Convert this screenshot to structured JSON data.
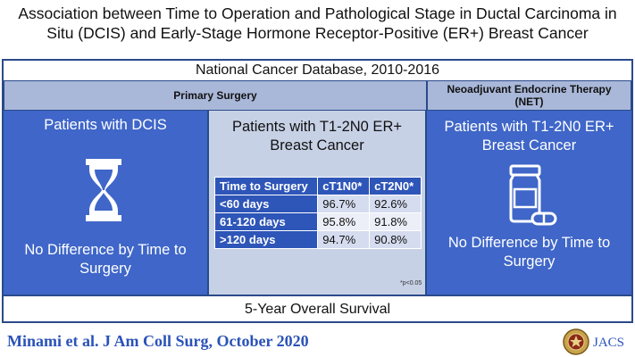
{
  "title": {
    "line1": "Association between Time to Operation and Pathological Stage in Ductal Carcinoma in",
    "line2": "Situ (DCIS) and Early-Stage Hormone Receptor-Positive (ER+) Breast Cancer"
  },
  "database": "National Cancer Database, 2010-2016",
  "headers": {
    "primary": "Primary Surgery",
    "net": "Neoadjuvant Endocrine Therapy (NET)"
  },
  "dcis_panel": {
    "title": "Patients with DCIS",
    "icon": "hourglass-icon",
    "result": "No Difference by Time to Surgery"
  },
  "middle_panel": {
    "title": "Patients with T1-2N0 ER+ Breast Cancer",
    "table": {
      "headers": [
        "Time to Surgery",
        "cT1N0*",
        "cT2N0*"
      ],
      "rows": [
        {
          "label": "<60 days",
          "cT1N0": "96.7%",
          "cT2N0": "92.6%"
        },
        {
          "label": "61-120 days",
          "cT1N0": "95.8%",
          "cT2N0": "91.8%"
        },
        {
          "label": ">120 days",
          "cT1N0": "94.7%",
          "cT2N0": "90.8%"
        }
      ]
    },
    "note": "*p<0.05"
  },
  "net_panel": {
    "title": "Patients with T1-2N0 ER+ Breast Cancer",
    "icon": "pill-bottle-icon",
    "result": "No Difference by Time to Surgery"
  },
  "footer_outcome": "5-Year Overall Survival",
  "citation": "Minami et al. J Am Coll Surg, October 2020",
  "journal": {
    "logo": "jacs-seal-icon",
    "name": "JACS"
  },
  "colors": {
    "panel_blue": "#3f66c8",
    "header_lavender": "#a9b8d9",
    "table_blue": "#2e55b8",
    "middle_bg": "#c7d1e6",
    "citation_blue": "#2a52b8"
  }
}
